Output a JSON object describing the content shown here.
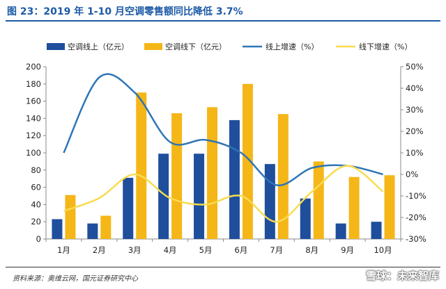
{
  "title": "图 23：2019 年 1-10 月空调零售额同比降低 3.7%",
  "source": "资料来源：奥维云网，国元证券研究中心",
  "watermark": "雪球：未来智库",
  "colors": {
    "online_bar": "#1f4e9c",
    "offline_bar": "#f5b618",
    "online_line": "#2e75b6",
    "offline_line": "#f7dc4f",
    "title": "#1c5aa6"
  },
  "chart_data": {
    "type": "bar",
    "categories": [
      "1月",
      "2月",
      "3月",
      "4月",
      "5月",
      "6月",
      "7月",
      "8月",
      "9月",
      "10月"
    ],
    "series": [
      {
        "name": "空调线上（亿元）",
        "type": "bar",
        "axis": "left",
        "values": [
          23,
          18,
          71,
          99,
          99,
          138,
          87,
          47,
          18,
          20
        ]
      },
      {
        "name": "空调线下（亿元）",
        "type": "bar",
        "axis": "left",
        "values": [
          51,
          27,
          170,
          146,
          153,
          180,
          145,
          90,
          72,
          74
        ]
      },
      {
        "name": "线上增速（%）",
        "type": "line",
        "axis": "right",
        "values": [
          10,
          45,
          38,
          15,
          16,
          10,
          -5,
          3,
          4,
          0
        ]
      },
      {
        "name": "线下增速（%）",
        "type": "line",
        "axis": "right",
        "values": [
          -17,
          -11,
          0,
          -11,
          -14,
          -10,
          -22,
          -8,
          4,
          -8
        ]
      }
    ],
    "left_axis": {
      "ylim": [
        0,
        200
      ],
      "ticks": [
        0,
        20,
        40,
        60,
        80,
        100,
        120,
        140,
        160,
        180,
        200
      ]
    },
    "right_axis": {
      "ylim": [
        -30,
        50
      ],
      "ticks": [
        "-30%",
        "-20%",
        "-10%",
        "0%",
        "10%",
        "20%",
        "30%",
        "40%",
        "50%"
      ]
    },
    "legend_position": "top",
    "grid": false
  }
}
